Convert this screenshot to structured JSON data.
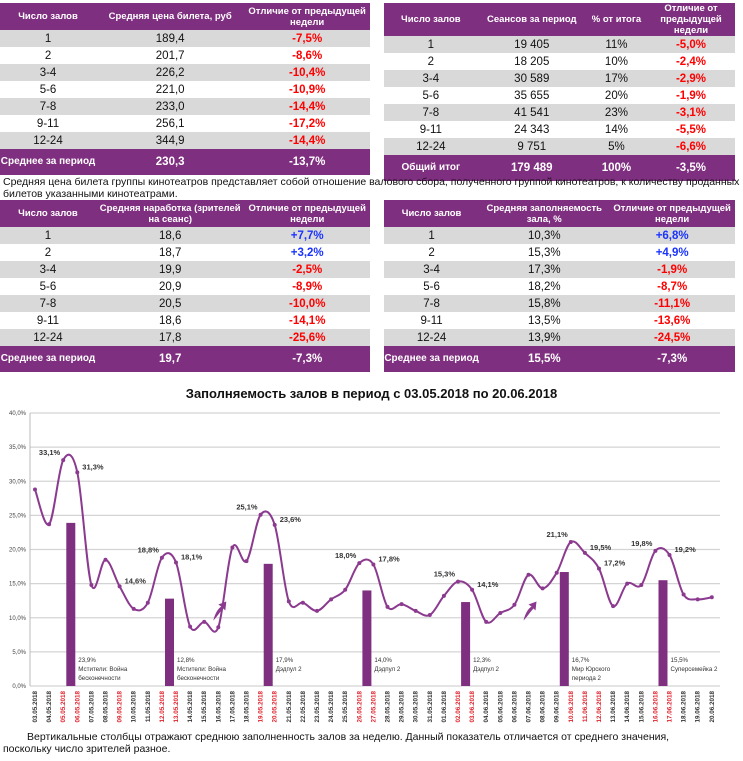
{
  "tables": [
    {
      "id": "ticket-price",
      "headers": [
        "Число залов",
        "Средняя цена билета, руб",
        "Отличие от предыдущей недели"
      ],
      "rows": [
        [
          "1",
          "189,4",
          "-7,5%"
        ],
        [
          "2",
          "201,7",
          "-8,6%"
        ],
        [
          "3-4",
          "226,2",
          "-10,4%"
        ],
        [
          "5-6",
          "221,0",
          "-10,9%"
        ],
        [
          "7-8",
          "233,0",
          "-14,4%"
        ],
        [
          "9-11",
          "256,1",
          "-17,2%"
        ],
        [
          "12-24",
          "344,9",
          "-14,4%"
        ]
      ],
      "total": [
        "Среднее за период",
        "230,3",
        "-13,7%"
      ]
    },
    {
      "id": "sessions",
      "headers": [
        "Число залов",
        "Сеансов за период",
        "% от итога",
        "Отличие от предыдущей недели"
      ],
      "rows": [
        [
          "1",
          "19 405",
          "11%",
          "-5,0%"
        ],
        [
          "2",
          "18 205",
          "10%",
          "-2,4%"
        ],
        [
          "3-4",
          "30 589",
          "17%",
          "-2,9%"
        ],
        [
          "5-6",
          "35 655",
          "20%",
          "-1,9%"
        ],
        [
          "7-8",
          "41 541",
          "23%",
          "-3,1%"
        ],
        [
          "9-11",
          "24 343",
          "14%",
          "-5,5%"
        ],
        [
          "12-24",
          "9 751",
          "5%",
          "-6,6%"
        ]
      ],
      "total": [
        "Общий итог",
        "179 489",
        "100%",
        "-3,5%"
      ]
    },
    {
      "id": "viewers-per-session",
      "headers": [
        "Число залов",
        "Средняя наработка (зрителей на сеанс)",
        "Отличие от предыдущей недели"
      ],
      "rows": [
        [
          "1",
          "18,6",
          "+7,7%"
        ],
        [
          "2",
          "18,7",
          "+3,2%"
        ],
        [
          "3-4",
          "19,9",
          "-2,5%"
        ],
        [
          "5-6",
          "20,9",
          "-8,9%"
        ],
        [
          "7-8",
          "20,5",
          "-10,0%"
        ],
        [
          "9-11",
          "18,6",
          "-14,1%"
        ],
        [
          "12-24",
          "17,8",
          "-25,6%"
        ]
      ],
      "total": [
        "Среднее за период",
        "19,7",
        "-7,3%"
      ]
    },
    {
      "id": "occupancy",
      "headers": [
        "Число залов",
        "Средняя заполняемость зала, %",
        "Отличие от предыдущей недели"
      ],
      "rows": [
        [
          "1",
          "10,3%",
          "+6,8%"
        ],
        [
          "2",
          "15,3%",
          "+4,9%"
        ],
        [
          "3-4",
          "17,3%",
          "-1,9%"
        ],
        [
          "5-6",
          "18,2%",
          "-8,7%"
        ],
        [
          "7-8",
          "15,8%",
          "-11,1%"
        ],
        [
          "9-11",
          "13,5%",
          "-13,6%"
        ],
        [
          "12-24",
          "13,9%",
          "-24,5%"
        ]
      ],
      "total": [
        "Среднее за период",
        "15,5%",
        "-7,3%"
      ]
    }
  ],
  "notes": {
    "ticket_price": "Средняя цена билета группы кинотеатров представляет собой отношение валового сбора, полученного группой кинотеатров, к количеству проданных билетов указанными кинотеатрами.",
    "bars": "Вертикальные столбцы отражают среднюю заполненность залов за неделю. Данный показатель отличается от среднего значения, поскольку число зрителей разное."
  },
  "colors": {
    "accent": "#7f2f7f",
    "row_alt": "#d9d9d9",
    "negative": "#ff0000",
    "positive": "#1a33ff",
    "weekend_date": "#e0202a"
  },
  "chart_data": {
    "type": "line+bar",
    "title": "Заполняемость залов в период с 03.05.2018 по 20.06.2018",
    "ylim": [
      0,
      40
    ],
    "yticks": [
      "0,0%",
      "5,0%",
      "10,0%",
      "15,0%",
      "20,0%",
      "25,0%",
      "30,0%",
      "35,0%",
      "40,0%"
    ],
    "grid": true,
    "x": [
      "03.05.2018",
      "04.05.2018",
      "05.05.2018",
      "06.05.2018",
      "07.05.2018",
      "08.05.2018",
      "09.05.2018",
      "10.05.2018",
      "11.05.2018",
      "12.05.2018",
      "13.05.2018",
      "14.05.2018",
      "15.05.2018",
      "16.05.2018",
      "17.05.2018",
      "18.05.2018",
      "19.05.2018",
      "20.05.2018",
      "21.05.2018",
      "22.05.2018",
      "23.05.2018",
      "24.05.2018",
      "25.05.2018",
      "26.05.2018",
      "27.05.2018",
      "28.05.2018",
      "29.05.2018",
      "30.05.2018",
      "31.05.2018",
      "01.06.2018",
      "02.06.2018",
      "03.06.2018",
      "04.06.2018",
      "05.06.2018",
      "06.06.2018",
      "07.06.2018",
      "08.06.2018",
      "09.06.2018",
      "10.06.2018",
      "11.06.2018",
      "12.06.2018",
      "13.06.2018",
      "14.06.2018",
      "15.06.2018",
      "16.06.2018",
      "17.06.2018",
      "18.06.2018",
      "19.06.2018",
      "20.06.2018"
    ],
    "weekend_dates": [
      "05.05.2018",
      "06.05.2018",
      "09.05.2018",
      "12.05.2018",
      "13.05.2018",
      "19.05.2018",
      "20.05.2018",
      "26.05.2018",
      "27.05.2018",
      "02.06.2018",
      "03.06.2018",
      "10.06.2018",
      "11.06.2018",
      "12.06.2018",
      "16.06.2018",
      "17.06.2018"
    ],
    "line_values": [
      28.8,
      23.7,
      33.1,
      31.3,
      14.8,
      18.5,
      14.6,
      11.3,
      12.2,
      18.8,
      18.1,
      8.7,
      9.4,
      8.6,
      20.3,
      18.3,
      25.1,
      23.6,
      12.4,
      12.2,
      11.0,
      12.7,
      14.1,
      18.0,
      17.8,
      11.6,
      12.0,
      11.0,
      10.4,
      13.2,
      15.3,
      14.1,
      9.4,
      10.7,
      11.9,
      16.3,
      14.3,
      16.6,
      21.1,
      19.5,
      17.2,
      11.7,
      15.0,
      14.8,
      19.8,
      19.2,
      13.4,
      12.7,
      13.0
    ],
    "point_labels": [
      {
        "date": "05.05.2018",
        "text": "33,1%"
      },
      {
        "date": "06.05.2018",
        "text": "31,3%"
      },
      {
        "date": "09.05.2018",
        "text": "14,6%"
      },
      {
        "date": "12.05.2018",
        "text": "18,8%"
      },
      {
        "date": "13.05.2018",
        "text": "18,1%"
      },
      {
        "date": "19.05.2018",
        "text": "25,1%"
      },
      {
        "date": "20.05.2018",
        "text": "23,6%"
      },
      {
        "date": "26.05.2018",
        "text": "18,0%"
      },
      {
        "date": "27.05.2018",
        "text": "17,8%"
      },
      {
        "date": "02.06.2018",
        "text": "15,3%"
      },
      {
        "date": "03.06.2018",
        "text": "14,1%"
      },
      {
        "date": "10.06.2018",
        "text": "21,1%"
      },
      {
        "date": "11.06.2018",
        "text": "19,5%"
      },
      {
        "date": "12.06.2018",
        "text": "17,2%"
      },
      {
        "date": "16.06.2018",
        "text": "19,8%"
      },
      {
        "date": "17.06.2018",
        "text": "19,2%"
      }
    ],
    "weekly_bars": [
      {
        "date": "06.05.2018",
        "value": 23.9,
        "label": "23,9%",
        "film": "Мстители: Война бесконечности"
      },
      {
        "date": "13.05.2018",
        "value": 12.8,
        "label": "12,8%",
        "film": "Мстители: Война бесконечности"
      },
      {
        "date": "20.05.2018",
        "value": 17.9,
        "label": "17,9%",
        "film": "Дэдпул 2"
      },
      {
        "date": "27.05.2018",
        "value": 14.0,
        "label": "14,0%",
        "film": "Дэдпул 2"
      },
      {
        "date": "03.06.2018",
        "value": 12.3,
        "label": "12,3%",
        "film": "Дэдпул 2"
      },
      {
        "date": "10.06.2018",
        "value": 16.7,
        "label": "16,7%",
        "film": "Мир Юрского периода 2"
      },
      {
        "date": "17.06.2018",
        "value": 15.5,
        "label": "15,5%",
        "film": "Суперсемейка 2"
      }
    ],
    "trend_arrows": [
      "16.05.2018",
      "07.06.2018"
    ]
  }
}
